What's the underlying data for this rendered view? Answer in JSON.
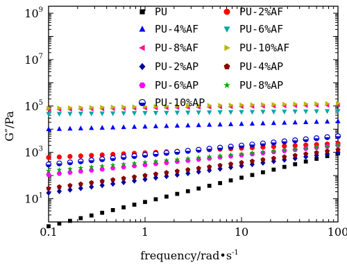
{
  "chart_data": {
    "type": "scatter",
    "xlabel": "frequency/rad•s",
    "xlabel_sup": "-1",
    "ylabel": "G″/Pa",
    "xscale": "log",
    "yscale": "log",
    "xlim": [
      0.1,
      100
    ],
    "ylim": [
      1,
      2000000000
    ],
    "x_ticks": [
      {
        "value": 0.1,
        "label": "0.1"
      },
      {
        "value": 1,
        "label": "1"
      },
      {
        "value": 10,
        "label": "10"
      },
      {
        "value": 100,
        "label": "100"
      }
    ],
    "y_ticks": [
      {
        "value": 10,
        "base": "10",
        "exp": "1"
      },
      {
        "value": 1000,
        "base": "10",
        "exp": "3"
      },
      {
        "value": 100000,
        "base": "10",
        "exp": "5"
      },
      {
        "value": 10000000,
        "base": "10",
        "exp": "7"
      },
      {
        "value": 1000000000,
        "base": "10",
        "exp": "9"
      }
    ],
    "legend_placement": "top",
    "legend_columns": 2,
    "series": [
      {
        "name": "PU",
        "marker": "square",
        "color": "#000000",
        "y_start": 0.65,
        "y_end": 900
      },
      {
        "name": "PU-2%AF",
        "marker": "circle",
        "color": "#ff0000",
        "y_start": 600,
        "y_end": 2400
      },
      {
        "name": "PU-4%AF",
        "marker": "triangle-up",
        "color": "#0000ff",
        "y_start": 10000,
        "y_end": 22000
      },
      {
        "name": "PU-6%AF",
        "marker": "triangle-down",
        "color": "#00a6a6",
        "y_start": 45000,
        "y_end": 60000
      },
      {
        "name": "PU-8%AF",
        "marker": "triangle-left",
        "color": "#ff1493",
        "y_start": 70000,
        "y_end": 110000
      },
      {
        "name": "PU-10%AF",
        "marker": "triangle-right",
        "color": "#b8b800",
        "y_start": 80000,
        "y_end": 130000
      },
      {
        "name": "PU-2%AP",
        "marker": "diamond",
        "color": "#0000a0",
        "y_start": 18,
        "y_end": 1000
      },
      {
        "name": "PU-4%AP",
        "marker": "pentagon",
        "color": "#8b0000",
        "y_start": 28,
        "y_end": 1300
      },
      {
        "name": "PU-6%AP",
        "marker": "hexagon",
        "color": "#ff00ff",
        "y_start": 110,
        "y_end": 2000
      },
      {
        "name": "PU-8%AP",
        "marker": "star",
        "color": "#00aa00",
        "y_start": 160,
        "y_end": 2000
      },
      {
        "name": "PU-10%AP",
        "marker": "half-circle",
        "color": "#0000cc",
        "y_start": 300,
        "y_end": 5000
      }
    ],
    "points_per_series": 28
  }
}
